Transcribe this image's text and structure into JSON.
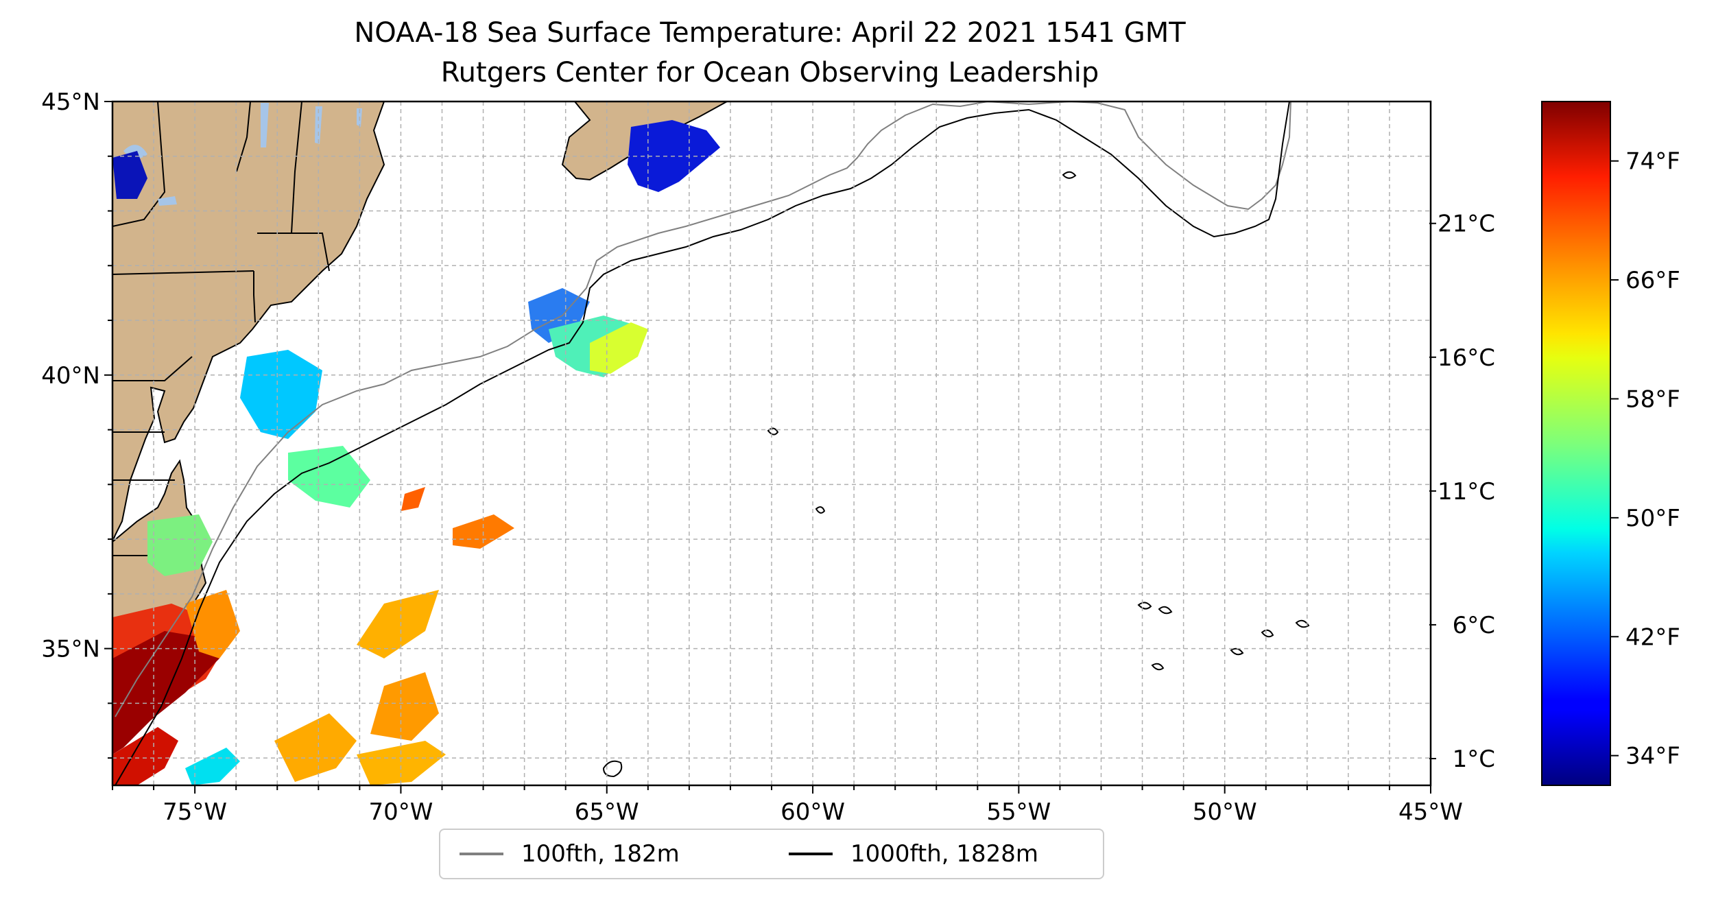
{
  "title": {
    "line1": "NOAA-18 Sea Surface Temperature: April 22 2021 1541 GMT",
    "line2": "Rutgers Center for Ocean Observing Leadership"
  },
  "map": {
    "lon_range": [
      -77,
      -45
    ],
    "lat_range": [
      32.5,
      45
    ],
    "lon_ticks": [
      {
        "value": -75,
        "label": "75°W"
      },
      {
        "value": -70,
        "label": "70°W"
      },
      {
        "value": -65,
        "label": "65°W"
      },
      {
        "value": -60,
        "label": "60°W"
      },
      {
        "value": -55,
        "label": "55°W"
      },
      {
        "value": -50,
        "label": "50°W"
      },
      {
        "value": -45,
        "label": "45°W"
      }
    ],
    "lat_ticks": [
      {
        "value": 45,
        "label": "45°N"
      },
      {
        "value": 40,
        "label": "40°N"
      },
      {
        "value": 35,
        "label": "35°N"
      }
    ],
    "gridlines": "dashed",
    "colors": {
      "land": "#d2b48c",
      "lakes": "#a6c5e8",
      "ocean": "#ffffff",
      "isobath_100": "#808080",
      "isobath_1000": "#000000"
    }
  },
  "legend": {
    "placement": "below-map",
    "items": [
      {
        "label": "100fth, 182m",
        "color": "#808080"
      },
      {
        "label": "1000fth, 1828m",
        "color": "#000000"
      }
    ]
  },
  "colorbar": {
    "colormap": "jet",
    "range_f": [
      32,
      78
    ],
    "celsius_ticks": [
      {
        "value_f": 33.8,
        "label": "1°C"
      },
      {
        "value_f": 42.8,
        "label": "6°C"
      },
      {
        "value_f": 51.8,
        "label": "11°C"
      },
      {
        "value_f": 60.8,
        "label": "16°C"
      },
      {
        "value_f": 69.8,
        "label": "21°C"
      }
    ],
    "fahrenheit_ticks": [
      {
        "value_f": 34,
        "label": "34°F"
      },
      {
        "value_f": 42,
        "label": "42°F"
      },
      {
        "value_f": 50,
        "label": "50°F"
      },
      {
        "value_f": 58,
        "label": "58°F"
      },
      {
        "value_f": 66,
        "label": "66°F"
      },
      {
        "value_f": 74,
        "label": "74°F"
      }
    ]
  }
}
